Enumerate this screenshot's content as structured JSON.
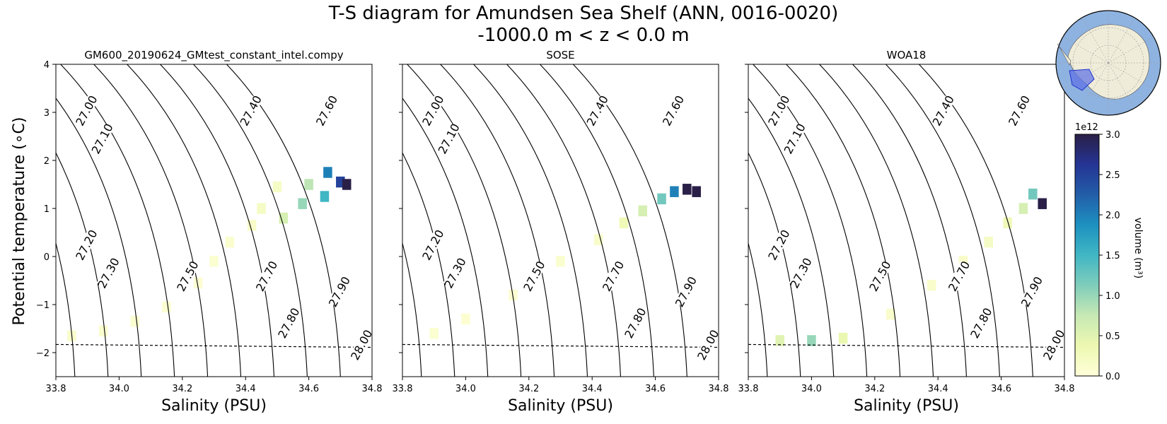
{
  "figure": {
    "title_line1": "T-S diagram for Amundsen Sea Shelf (ANN, 0016-0020)",
    "title_line2": "-1000.0 m < z < 0.0 m",
    "ylabel": "Potential temperature (∘C)",
    "colors": {
      "axis": "#000000",
      "contour": "#000000",
      "map_ocean": "#8fb3e0",
      "map_land": "#efecd9",
      "map_region": "#5b6fe6"
    }
  },
  "colorbar": {
    "label": "volume (m³)",
    "multiplier": "1e12",
    "ticks": [
      "0.0",
      "0.5",
      "1.0",
      "1.5",
      "2.0",
      "2.5",
      "3.0"
    ],
    "range": [
      0,
      3.0
    ],
    "colormap": [
      "#ffffd9",
      "#edf8b1",
      "#c7e9b4",
      "#7fcdbb",
      "#41b6c4",
      "#1d91c0",
      "#225ea8",
      "#253494",
      "#2a1f47"
    ]
  },
  "chart_data": [
    {
      "type": "heatmap",
      "title": "GM600_20190624_GMtest_constant_intel.compy",
      "xlabel": "Salinity (PSU)",
      "xlim": [
        33.8,
        34.8
      ],
      "ylim": [
        -2.5,
        4
      ],
      "xticks": [
        "33.8",
        "34.0",
        "34.2",
        "34.4",
        "34.6",
        "34.8"
      ],
      "yticks": [
        "−2",
        "−1",
        "0",
        "1",
        "2",
        "3",
        "4"
      ],
      "freezing_line": [
        [
          33.8,
          -1.83
        ],
        [
          34.8,
          -1.89
        ]
      ],
      "density_contours": [
        "27.00",
        "27.10",
        "27.20",
        "27.30",
        "27.40",
        "27.50",
        "27.60",
        "27.70",
        "27.80",
        "27.90",
        "28.00"
      ],
      "volume_bins_1e12": [
        {
          "s": 33.85,
          "t": -1.65,
          "v": 0.12
        },
        {
          "s": 33.95,
          "t": -1.55,
          "v": 0.1
        },
        {
          "s": 34.05,
          "t": -1.35,
          "v": 0.08
        },
        {
          "s": 34.15,
          "t": -1.05,
          "v": 0.07
        },
        {
          "s": 34.25,
          "t": -0.55,
          "v": 0.07
        },
        {
          "s": 34.3,
          "t": -0.1,
          "v": 0.08
        },
        {
          "s": 34.35,
          "t": 0.3,
          "v": 0.1
        },
        {
          "s": 34.42,
          "t": 0.65,
          "v": 0.15
        },
        {
          "s": 34.45,
          "t": 1.0,
          "v": 0.2
        },
        {
          "s": 34.5,
          "t": 1.45,
          "v": 0.18
        },
        {
          "s": 34.52,
          "t": 0.8,
          "v": 0.6
        },
        {
          "s": 34.58,
          "t": 1.1,
          "v": 1.0
        },
        {
          "s": 34.6,
          "t": 1.5,
          "v": 0.8
        },
        {
          "s": 34.65,
          "t": 1.25,
          "v": 1.5
        },
        {
          "s": 34.66,
          "t": 1.75,
          "v": 2.0
        },
        {
          "s": 34.7,
          "t": 1.55,
          "v": 2.5
        },
        {
          "s": 34.72,
          "t": 1.5,
          "v": 3.0
        }
      ]
    },
    {
      "type": "heatmap",
      "title": "SOSE",
      "xlabel": "Salinity (PSU)",
      "xlim": [
        33.8,
        34.8
      ],
      "ylim": [
        -2.5,
        4
      ],
      "xticks": [
        "33.8",
        "34.0",
        "34.2",
        "34.4",
        "34.6",
        "34.8"
      ],
      "yticks": [
        "−2",
        "−1",
        "0",
        "1",
        "2",
        "3",
        "4"
      ],
      "freezing_line": [
        [
          33.8,
          -1.83
        ],
        [
          34.8,
          -1.89
        ]
      ],
      "density_contours": [
        "27.00",
        "27.10",
        "27.20",
        "27.30",
        "27.40",
        "27.50",
        "27.60",
        "27.70",
        "27.80",
        "27.90",
        "28.00"
      ],
      "volume_bins_1e12": [
        {
          "s": 33.9,
          "t": -1.6,
          "v": 0.08
        },
        {
          "s": 34.0,
          "t": -1.3,
          "v": 0.07
        },
        {
          "s": 34.15,
          "t": -0.8,
          "v": 0.07
        },
        {
          "s": 34.3,
          "t": -0.1,
          "v": 0.1
        },
        {
          "s": 34.42,
          "t": 0.35,
          "v": 0.15
        },
        {
          "s": 34.5,
          "t": 0.7,
          "v": 0.3
        },
        {
          "s": 34.56,
          "t": 0.95,
          "v": 0.6
        },
        {
          "s": 34.62,
          "t": 1.2,
          "v": 1.2
        },
        {
          "s": 34.66,
          "t": 1.35,
          "v": 2.0
        },
        {
          "s": 34.7,
          "t": 1.4,
          "v": 3.0
        },
        {
          "s": 34.73,
          "t": 1.35,
          "v": 3.0
        }
      ]
    },
    {
      "type": "heatmap",
      "title": "WOA18",
      "xlabel": "Salinity (PSU)",
      "xlim": [
        33.8,
        34.8
      ],
      "ylim": [
        -2.5,
        4
      ],
      "xticks": [
        "33.8",
        "34.0",
        "34.2",
        "34.4",
        "34.6",
        "34.8"
      ],
      "yticks": [
        "−2",
        "−1",
        "0",
        "1",
        "2",
        "3",
        "4"
      ],
      "freezing_line": [
        [
          33.8,
          -1.83
        ],
        [
          34.8,
          -1.89
        ]
      ],
      "density_contours": [
        "27.00",
        "27.10",
        "27.20",
        "27.30",
        "27.40",
        "27.50",
        "27.60",
        "27.70",
        "27.80",
        "27.90",
        "28.00"
      ],
      "volume_bins_1e12": [
        {
          "s": 33.9,
          "t": -1.75,
          "v": 0.5
        },
        {
          "s": 34.0,
          "t": -1.75,
          "v": 1.0
        },
        {
          "s": 34.1,
          "t": -1.7,
          "v": 0.4
        },
        {
          "s": 34.25,
          "t": -1.2,
          "v": 0.12
        },
        {
          "s": 34.38,
          "t": -0.6,
          "v": 0.12
        },
        {
          "s": 34.48,
          "t": -0.1,
          "v": 0.15
        },
        {
          "s": 34.56,
          "t": 0.3,
          "v": 0.2
        },
        {
          "s": 34.62,
          "t": 0.7,
          "v": 0.3
        },
        {
          "s": 34.67,
          "t": 1.0,
          "v": 0.6
        },
        {
          "s": 34.7,
          "t": 1.3,
          "v": 1.2
        },
        {
          "s": 34.73,
          "t": 1.1,
          "v": 3.0
        }
      ]
    }
  ]
}
